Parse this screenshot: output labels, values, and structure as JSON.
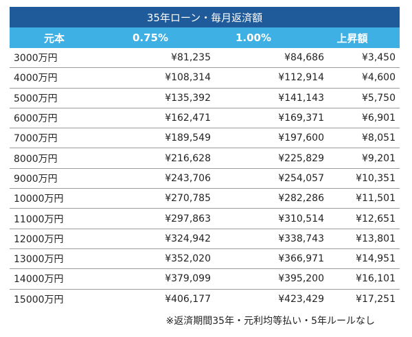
{
  "table": {
    "title": "35年ローン・毎月返済額",
    "headers": [
      "元本",
      "0.75%",
      "1.00%",
      "上昇額"
    ],
    "rows": [
      [
        "3000万円",
        "¥81,235",
        "¥84,686",
        "¥3,450"
      ],
      [
        "4000万円",
        "¥108,314",
        "¥112,914",
        "¥4,600"
      ],
      [
        "5000万円",
        "¥135,392",
        "¥141,143",
        "¥5,750"
      ],
      [
        "6000万円",
        "¥162,471",
        "¥169,371",
        "¥6,901"
      ],
      [
        "7000万円",
        "¥189,549",
        "¥197,600",
        "¥8,051"
      ],
      [
        "8000万円",
        "¥216,628",
        "¥225,829",
        "¥9,201"
      ],
      [
        "9000万円",
        "¥243,706",
        "¥254,057",
        "¥10,351"
      ],
      [
        "10000万円",
        "¥270,785",
        "¥282,286",
        "¥11,501"
      ],
      [
        "11000万円",
        "¥297,863",
        "¥310,514",
        "¥12,651"
      ],
      [
        "12000万円",
        "¥324,942",
        "¥338,743",
        "¥13,801"
      ],
      [
        "13000万円",
        "¥352,020",
        "¥366,971",
        "¥14,951"
      ],
      [
        "14000万円",
        "¥379,099",
        "¥395,200",
        "¥16,101"
      ],
      [
        "15000万円",
        "¥406,177",
        "¥423,429",
        "¥17,251"
      ]
    ],
    "footnote": "※返済期間35年・元利均等払い・5年ルールなし"
  },
  "colors": {
    "title_bg": "#1f5b9b",
    "header_bg": "#3fb0e3",
    "header_text": "#ffffff",
    "row_border": "#9a9a9a"
  }
}
